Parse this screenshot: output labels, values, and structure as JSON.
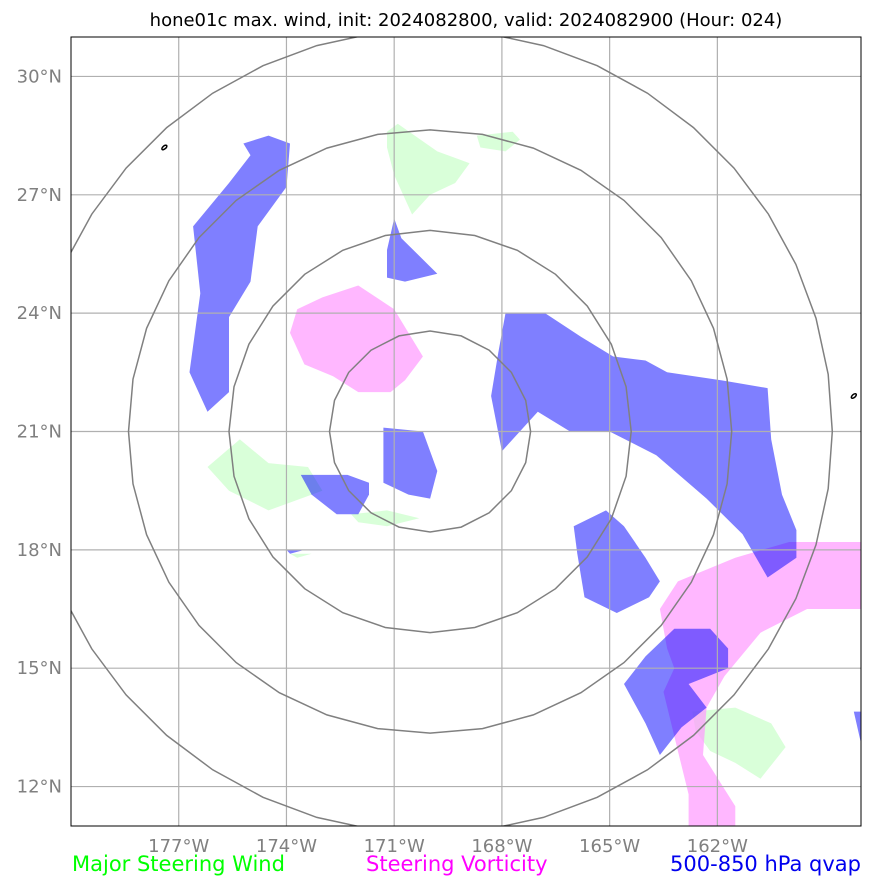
{
  "chart_data": {
    "type": "map",
    "title": "hone01c max. wind, init: 2024082800, valid: 2024082900 (Hour: 024)",
    "xlim": [
      -180,
      -158
    ],
    "ylim": [
      11,
      31
    ],
    "x_ticks": [
      {
        "value": -177,
        "label": "177°W"
      },
      {
        "value": -174,
        "label": "174°W"
      },
      {
        "value": -171,
        "label": "171°W"
      },
      {
        "value": -168,
        "label": "168°W"
      },
      {
        "value": -165,
        "label": "165°W"
      },
      {
        "value": -162,
        "label": "162°W"
      }
    ],
    "y_ticks": [
      {
        "value": 12,
        "label": "12°N"
      },
      {
        "value": 15,
        "label": "15°N"
      },
      {
        "value": 18,
        "label": "18°N"
      },
      {
        "value": 21,
        "label": "21°N"
      },
      {
        "value": 24,
        "label": "24°N"
      },
      {
        "value": 27,
        "label": "27°N"
      },
      {
        "value": 30,
        "label": "30°N"
      }
    ],
    "grid": true,
    "range_ring_center": {
      "lon": -170,
      "lat": 21
    },
    "range_rings_deg": [
      2.8,
      5.6,
      8.4,
      11.2
    ],
    "colors": {
      "qvap": "#0000ff",
      "vorticity": "#ff99ff",
      "wind": "#ccffcc",
      "ring": "#808080",
      "grid": "#b0b0b0",
      "tick": "#808080"
    },
    "legend": [
      {
        "name": "Major Steering Wind",
        "color": "#00ff00"
      },
      {
        "name": "Steering Vorticity",
        "color": "#ff00ff"
      },
      {
        "name": "500-850 hPa qvap",
        "color": "#0000ee"
      }
    ],
    "wind_regions": [
      [
        [
          -171.2,
          28.6
        ],
        [
          -170.9,
          28.8
        ],
        [
          -169.8,
          28.1
        ],
        [
          -169.2,
          27.9
        ],
        [
          -168.9,
          27.8
        ],
        [
          -169.3,
          27.3
        ],
        [
          -170.0,
          27.0
        ],
        [
          -170.5,
          26.5
        ],
        [
          -171.0,
          27.5
        ],
        [
          -171.2,
          28.2
        ]
      ],
      [
        [
          -168.7,
          28.5
        ],
        [
          -167.7,
          28.6
        ],
        [
          -167.5,
          28.4
        ],
        [
          -167.9,
          28.1
        ],
        [
          -168.6,
          28.2
        ]
      ],
      [
        [
          -176.2,
          20.1
        ],
        [
          -175.3,
          20.8
        ],
        [
          -174.5,
          20.2
        ],
        [
          -173.4,
          20.1
        ],
        [
          -173.0,
          19.5
        ],
        [
          -174.5,
          19.0
        ],
        [
          -175.6,
          19.5
        ]
      ],
      [
        [
          -172.2,
          18.9
        ],
        [
          -171.2,
          19.0
        ],
        [
          -170.3,
          18.8
        ],
        [
          -171.2,
          18.6
        ],
        [
          -172.0,
          18.7
        ]
      ],
      [
        [
          -162.7,
          13.9
        ],
        [
          -161.5,
          14.0
        ],
        [
          -160.5,
          13.6
        ],
        [
          -160.1,
          13.0
        ],
        [
          -160.8,
          12.2
        ],
        [
          -161.5,
          12.6
        ],
        [
          -162.2,
          12.9
        ],
        [
          -162.6,
          13.4
        ]
      ],
      [
        [
          -173.9,
          17.9
        ],
        [
          -173.3,
          17.9
        ],
        [
          -173.7,
          17.8
        ]
      ]
    ],
    "vorticity_regions": [
      [
        [
          -173.7,
          24.1
        ],
        [
          -173.0,
          24.4
        ],
        [
          -172.0,
          24.7
        ],
        [
          -171.0,
          24.1
        ],
        [
          -170.6,
          23.5
        ],
        [
          -170.2,
          22.9
        ],
        [
          -170.7,
          22.3
        ],
        [
          -171.1,
          22.0
        ],
        [
          -172.0,
          22.0
        ],
        [
          -172.7,
          22.4
        ],
        [
          -173.5,
          22.7
        ],
        [
          -173.9,
          23.5
        ]
      ],
      [
        [
          -163.6,
          16.5
        ],
        [
          -163.1,
          17.2
        ],
        [
          -161.5,
          17.8
        ],
        [
          -160.0,
          18.2
        ],
        [
          -158.0,
          18.2
        ],
        [
          -158.0,
          16.5
        ],
        [
          -159.5,
          16.5
        ],
        [
          -160.8,
          15.9
        ],
        [
          -161.8,
          14.8
        ],
        [
          -162.3,
          14.0
        ],
        [
          -162.4,
          12.8
        ],
        [
          -161.5,
          11.5
        ],
        [
          -161.5,
          11.0
        ],
        [
          -162.8,
          11.0
        ],
        [
          -162.8,
          11.8
        ],
        [
          -163.1,
          12.9
        ],
        [
          -163.5,
          14.4
        ],
        [
          -163.2,
          15.0
        ],
        [
          -163.4,
          15.5
        ]
      ]
    ],
    "qvap_regions": [
      [
        [
          -175.2,
          28.3
        ],
        [
          -174.5,
          28.5
        ],
        [
          -173.9,
          28.3
        ],
        [
          -174.0,
          27.2
        ],
        [
          -174.8,
          26.2
        ],
        [
          -175.0,
          24.8
        ],
        [
          -175.6,
          23.9
        ],
        [
          -175.6,
          22.0
        ],
        [
          -176.2,
          21.5
        ],
        [
          -176.7,
          22.5
        ],
        [
          -176.4,
          24.5
        ],
        [
          -176.6,
          26.2
        ],
        [
          -175.6,
          27.3
        ],
        [
          -175.0,
          28.0
        ]
      ],
      [
        [
          -171.0,
          26.4
        ],
        [
          -170.8,
          25.9
        ],
        [
          -169.8,
          25.0
        ],
        [
          -170.7,
          24.8
        ],
        [
          -171.2,
          24.9
        ],
        [
          -171.2,
          25.6
        ]
      ],
      [
        [
          -171.3,
          21.1
        ],
        [
          -170.2,
          21.0
        ],
        [
          -169.8,
          20.0
        ],
        [
          -170.0,
          19.3
        ],
        [
          -170.6,
          19.4
        ],
        [
          -171.3,
          19.7
        ]
      ],
      [
        [
          -172.8,
          19.9
        ],
        [
          -173.6,
          19.9
        ],
        [
          -173.3,
          19.4
        ],
        [
          -172.6,
          18.9
        ],
        [
          -172.0,
          18.9
        ],
        [
          -171.7,
          19.4
        ],
        [
          -171.7,
          19.7
        ],
        [
          -172.3,
          19.9
        ]
      ],
      [
        [
          -167.9,
          24.0
        ],
        [
          -166.8,
          24.0
        ],
        [
          -165.8,
          23.4
        ],
        [
          -164.9,
          22.9
        ],
        [
          -164.0,
          22.8
        ],
        [
          -163.4,
          22.5
        ],
        [
          -161.9,
          22.3
        ],
        [
          -160.6,
          22.1
        ],
        [
          -160.5,
          20.8
        ],
        [
          -160.2,
          19.4
        ],
        [
          -159.8,
          18.5
        ],
        [
          -159.8,
          17.8
        ],
        [
          -160.6,
          17.3
        ],
        [
          -161.3,
          18.4
        ],
        [
          -162.3,
          19.3
        ],
        [
          -163.7,
          20.4
        ],
        [
          -165.0,
          21.0
        ],
        [
          -166.1,
          21.0
        ],
        [
          -167.0,
          21.5
        ],
        [
          -168.0,
          20.5
        ],
        [
          -168.3,
          21.9
        ],
        [
          -168.1,
          23.0
        ]
      ],
      [
        [
          -165.1,
          19.0
        ],
        [
          -164.6,
          18.6
        ],
        [
          -164.0,
          17.8
        ],
        [
          -163.6,
          17.2
        ],
        [
          -163.9,
          16.8
        ],
        [
          -164.8,
          16.4
        ],
        [
          -165.7,
          16.8
        ],
        [
          -165.9,
          17.9
        ],
        [
          -166.0,
          18.6
        ]
      ],
      [
        [
          -163.2,
          16.0
        ],
        [
          -162.2,
          16.0
        ],
        [
          -161.7,
          15.5
        ],
        [
          -161.7,
          15.0
        ],
        [
          -162.8,
          14.6
        ],
        [
          -162.3,
          14.0
        ],
        [
          -163.0,
          13.5
        ],
        [
          -163.6,
          12.8
        ],
        [
          -164.0,
          13.6
        ],
        [
          -164.6,
          14.6
        ],
        [
          -164.0,
          15.3
        ]
      ],
      [
        [
          -158.2,
          13.9
        ],
        [
          -158.0,
          13.1
        ],
        [
          -158.0,
          13.9
        ]
      ],
      [
        [
          -174.0,
          18.0
        ],
        [
          -173.5,
          18.0
        ],
        [
          -173.9,
          17.9
        ]
      ]
    ],
    "island_marks": [
      {
        "lon": -177.4,
        "lat": 28.2
      },
      {
        "lon": -158.2,
        "lat": 21.9
      }
    ]
  }
}
